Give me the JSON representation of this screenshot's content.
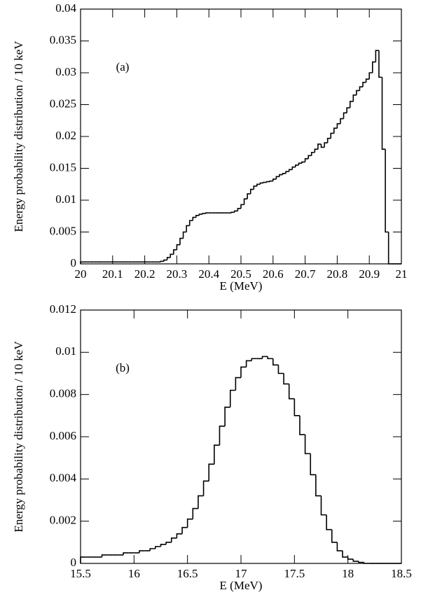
{
  "chart_data": [
    {
      "type": "histogram",
      "annotation": "(a)",
      "xlabel": "E (MeV)",
      "ylabel": "Energy probability distribution / 10 keV",
      "color": "#000000",
      "xlim": [
        20,
        21
      ],
      "ylim": [
        0,
        0.04
      ],
      "xticks": [
        20,
        20.1,
        20.2,
        20.3,
        20.4,
        20.5,
        20.6,
        20.7,
        20.8,
        20.9,
        21
      ],
      "yticks": [
        0,
        0.005,
        0.01,
        0.015,
        0.02,
        0.025,
        0.03,
        0.035,
        0.04
      ],
      "bins": [
        20,
        20.01,
        20.02,
        20.03,
        20.04,
        20.05,
        20.06,
        20.07,
        20.08,
        20.09,
        20.1,
        20.11,
        20.12,
        20.13,
        20.14,
        20.15,
        20.16,
        20.17,
        20.18,
        20.19,
        20.2,
        20.21,
        20.22,
        20.23,
        20.24,
        20.25,
        20.26,
        20.27,
        20.28,
        20.29,
        20.3,
        20.31,
        20.32,
        20.33,
        20.34,
        20.35,
        20.36,
        20.37,
        20.38,
        20.39,
        20.4,
        20.41,
        20.42,
        20.43,
        20.44,
        20.45,
        20.46,
        20.47,
        20.48,
        20.49,
        20.5,
        20.51,
        20.52,
        20.53,
        20.54,
        20.55,
        20.56,
        20.57,
        20.58,
        20.59,
        20.6,
        20.61,
        20.62,
        20.63,
        20.64,
        20.65,
        20.66,
        20.67,
        20.68,
        20.69,
        20.7,
        20.71,
        20.72,
        20.73,
        20.74,
        20.75,
        20.76,
        20.77,
        20.78,
        20.79,
        20.8,
        20.81,
        20.82,
        20.83,
        20.84,
        20.85,
        20.86,
        20.87,
        20.88,
        20.89,
        20.9,
        20.91,
        20.92,
        20.93,
        20.94,
        20.95,
        20.96,
        20.97,
        20.98,
        20.99,
        21
      ],
      "counts": [
        0.0003,
        0.0003,
        0.0003,
        0.0003,
        0.0003,
        0.0003,
        0.0003,
        0.0003,
        0.0003,
        0.0003,
        0.0003,
        0.0003,
        0.0003,
        0.0003,
        0.0003,
        0.0003,
        0.0003,
        0.0003,
        0.0003,
        0.0003,
        0.0003,
        0.0003,
        0.0003,
        0.0003,
        0.0003,
        0.0004,
        0.0006,
        0.001,
        0.0015,
        0.0022,
        0.003,
        0.004,
        0.005,
        0.006,
        0.0068,
        0.0073,
        0.0076,
        0.0078,
        0.0079,
        0.008,
        0.008,
        0.008,
        0.008,
        0.008,
        0.008,
        0.008,
        0.008,
        0.0081,
        0.0083,
        0.0087,
        0.0093,
        0.0102,
        0.011,
        0.0117,
        0.0122,
        0.0125,
        0.0127,
        0.0128,
        0.0129,
        0.013,
        0.0133,
        0.0137,
        0.014,
        0.0142,
        0.0145,
        0.0148,
        0.0152,
        0.0155,
        0.0158,
        0.016,
        0.0165,
        0.017,
        0.0175,
        0.018,
        0.0188,
        0.0183,
        0.019,
        0.0197,
        0.0205,
        0.0213,
        0.022,
        0.0228,
        0.0237,
        0.0245,
        0.0255,
        0.0265,
        0.0272,
        0.0278,
        0.0285,
        0.029,
        0.03,
        0.0317,
        0.0335,
        0.0293,
        0.018,
        0.005,
        0,
        0,
        0,
        0
      ]
    },
    {
      "type": "histogram",
      "annotation": "(b)",
      "xlabel": "E (MeV)",
      "ylabel": "Energy probability distribution / 10 keV",
      "color": "#000000",
      "xlim": [
        15.5,
        18.5
      ],
      "ylim": [
        0,
        0.012
      ],
      "xticks": [
        15.5,
        16,
        16.5,
        17,
        17.5,
        18,
        18.5
      ],
      "yticks": [
        0,
        0.002,
        0.004,
        0.006,
        0.008,
        0.01,
        0.012
      ],
      "bins": [
        15.5,
        15.55,
        15.6,
        15.65,
        15.7,
        15.75,
        15.8,
        15.85,
        15.9,
        15.95,
        16,
        16.05,
        16.1,
        16.15,
        16.2,
        16.25,
        16.3,
        16.35,
        16.4,
        16.45,
        16.5,
        16.55,
        16.6,
        16.65,
        16.7,
        16.75,
        16.8,
        16.85,
        16.9,
        16.95,
        17,
        17.05,
        17.1,
        17.15,
        17.2,
        17.25,
        17.3,
        17.35,
        17.4,
        17.45,
        17.5,
        17.55,
        17.6,
        17.65,
        17.7,
        17.75,
        17.8,
        17.85,
        17.9,
        17.95,
        18,
        18.05,
        18.1,
        18.15,
        18.2,
        18.25,
        18.3,
        18.35,
        18.4,
        18.45,
        18.5
      ],
      "counts": [
        0.0003,
        0.0003,
        0.0003,
        0.0003,
        0.0004,
        0.0004,
        0.0004,
        0.0004,
        0.0005,
        0.0005,
        0.0005,
        0.0006,
        0.0006,
        0.0007,
        0.0008,
        0.0009,
        0.001,
        0.0012,
        0.0014,
        0.0017,
        0.0021,
        0.0026,
        0.0032,
        0.0039,
        0.0047,
        0.0056,
        0.0065,
        0.0074,
        0.0082,
        0.0088,
        0.0093,
        0.0096,
        0.0097,
        0.0097,
        0.0098,
        0.0097,
        0.0094,
        0.009,
        0.0085,
        0.0078,
        0.007,
        0.0061,
        0.0052,
        0.0042,
        0.0032,
        0.0023,
        0.0016,
        0.001,
        0.0006,
        0.0003,
        0.0002,
        0.0001,
        5e-05,
        0,
        0,
        0,
        0,
        0,
        0,
        0
      ]
    }
  ]
}
